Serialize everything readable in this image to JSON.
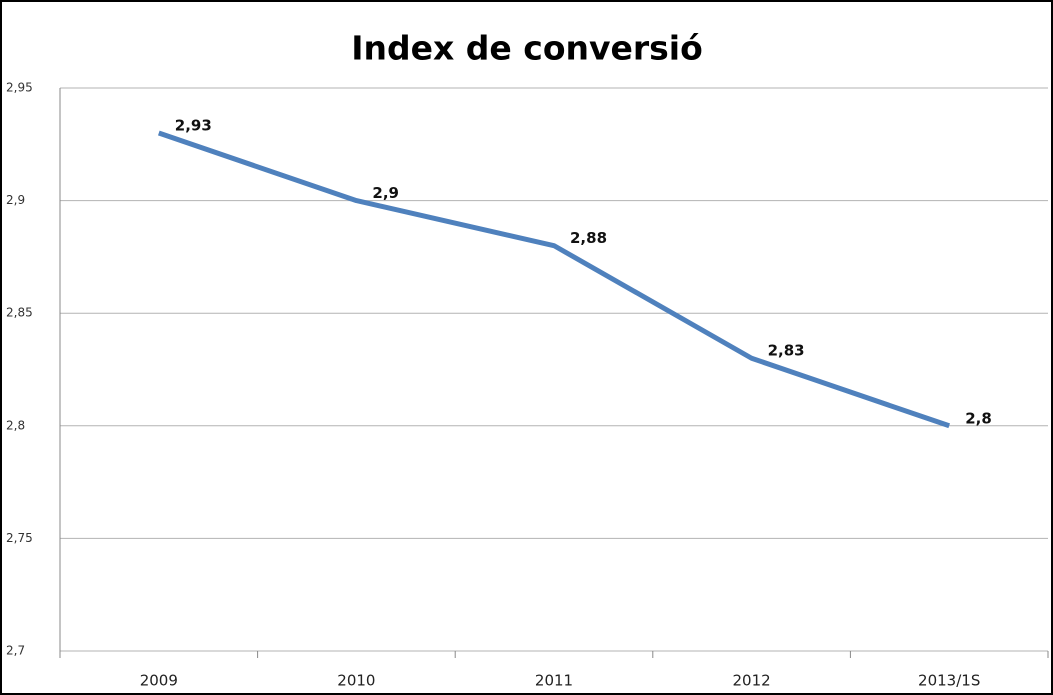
{
  "chart_data": {
    "type": "line",
    "title": "Index de conversió",
    "categories": [
      "2009",
      "2010",
      "2011",
      "2012",
      "2013/1S"
    ],
    "values": [
      2.93,
      2.9,
      2.88,
      2.83,
      2.8
    ],
    "value_labels": [
      "2,93",
      "2,9",
      "2,88",
      "2,83",
      "2,8"
    ],
    "color": "#4f81bd",
    "ylim": [
      2.7,
      2.95
    ],
    "yticks": [
      {
        "value": 2.7,
        "label": "2,7"
      },
      {
        "value": 2.75,
        "label": "2,75"
      },
      {
        "value": 2.8,
        "label": "2,8"
      },
      {
        "value": 2.85,
        "label": "2,85"
      },
      {
        "value": 2.9,
        "label": "2,9"
      },
      {
        "value": 2.95,
        "label": "2,95"
      }
    ],
    "grid": true
  }
}
